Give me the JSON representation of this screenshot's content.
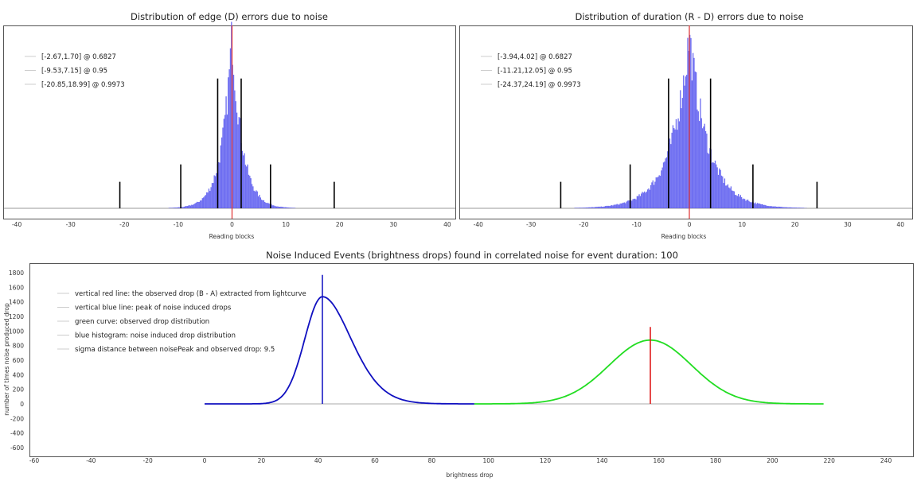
{
  "chart_data": [
    {
      "type": "bar",
      "title": "Distribution of edge (D) errors due to noise",
      "xlabel": "Reading blocks",
      "ylabel": "",
      "xlim": [
        -42,
        42
      ],
      "xticks": [
        -40,
        -30,
        -20,
        -10,
        0,
        10,
        20,
        30,
        40
      ],
      "histogram": {
        "shape": "laplace",
        "center": 0,
        "scale": 1.9,
        "peak_fraction": 0.96,
        "color": "#5555ee"
      },
      "center_line": {
        "x": 0,
        "color": "#e03030"
      },
      "intervals": [
        {
          "low": -2.67,
          "high": 1.7,
          "confidence": 0.6827,
          "label": "[-2.67,1.70] @ 0.6827",
          "marker_fraction": 0.71
        },
        {
          "low": -9.53,
          "high": 7.15,
          "confidence": 0.95,
          "label": "[-9.53,7.15] @ 0.95",
          "marker_fraction": 0.24
        },
        {
          "low": -20.85,
          "high": 18.99,
          "confidence": 0.9973,
          "label": "[-20.85,18.99] @ 0.9973",
          "marker_fraction": 0.145
        }
      ],
      "legend_position": "top-left"
    },
    {
      "type": "bar",
      "title": "Distribution of duration (R - D) errors due to noise",
      "xlabel": "Reading blocks",
      "ylabel": "",
      "xlim": [
        -42,
        42
      ],
      "xticks": [
        -40,
        -30,
        -20,
        -10,
        0,
        10,
        20,
        30,
        40
      ],
      "histogram": {
        "shape": "laplace",
        "center": 0,
        "scale": 3.6,
        "peak_fraction": 0.94,
        "color": "#5555ee"
      },
      "center_line": {
        "x": 0,
        "color": "#e03030"
      },
      "intervals": [
        {
          "low": -3.94,
          "high": 4.02,
          "confidence": 0.6827,
          "label": "[-3.94,4.02] @ 0.6827",
          "marker_fraction": 0.71
        },
        {
          "low": -11.21,
          "high": 12.05,
          "confidence": 0.95,
          "label": "[-11.21,12.05] @ 0.95",
          "marker_fraction": 0.24
        },
        {
          "low": -24.37,
          "high": 24.19,
          "confidence": 0.9973,
          "label": "[-24.37,24.19] @ 0.9973",
          "marker_fraction": 0.145
        }
      ],
      "legend_position": "top-left"
    },
    {
      "type": "line",
      "title": "Noise Induced Events (brightness drops) found in correlated noise for event duration: 100",
      "xlabel": "brightness drop",
      "ylabel": "number of times noise produced drop",
      "xlim": [
        -62,
        250
      ],
      "ylim": [
        -720,
        1850
      ],
      "xticks": [
        -60,
        -40,
        -20,
        0,
        20,
        40,
        60,
        80,
        100,
        120,
        140,
        160,
        180,
        200,
        220,
        240
      ],
      "yticks": [
        1800,
        1600,
        1400,
        1200,
        1000,
        800,
        600,
        400,
        200,
        0,
        -200,
        -400,
        -600
      ],
      "series": [
        {
          "name": "blue histogram: noise induced drop distribution",
          "color": "#1010c0",
          "shape": "skewed",
          "peak_x": 41.5,
          "peak_y": 1470,
          "left_sigma": 6.2,
          "right_sigma": 9.5,
          "x_range": [
            0,
            95
          ]
        },
        {
          "name": "green curve: observed drop distribution",
          "color": "#22dd22",
          "shape": "gaussian",
          "mean": 157,
          "peak_y": 875,
          "sigma": 14.5,
          "x_range": [
            95,
            218
          ]
        }
      ],
      "vlines": [
        {
          "name": "vertical blue line",
          "x": 41.5,
          "y_top": 1770,
          "color": "#1010c0"
        },
        {
          "name": "vertical red line",
          "x": 157,
          "y_top": 1055,
          "color": "#dd1010"
        }
      ],
      "legend": [
        "vertical red line: the observed drop (B - A) extracted from lightcurve",
        "vertical blue line: peak of noise induced drops",
        "green curve: observed drop distribution",
        "blue histogram: noise induced drop distribution",
        "sigma distance between noisePeak and observed drop: 9.5"
      ],
      "legend_position": "top-left"
    }
  ]
}
